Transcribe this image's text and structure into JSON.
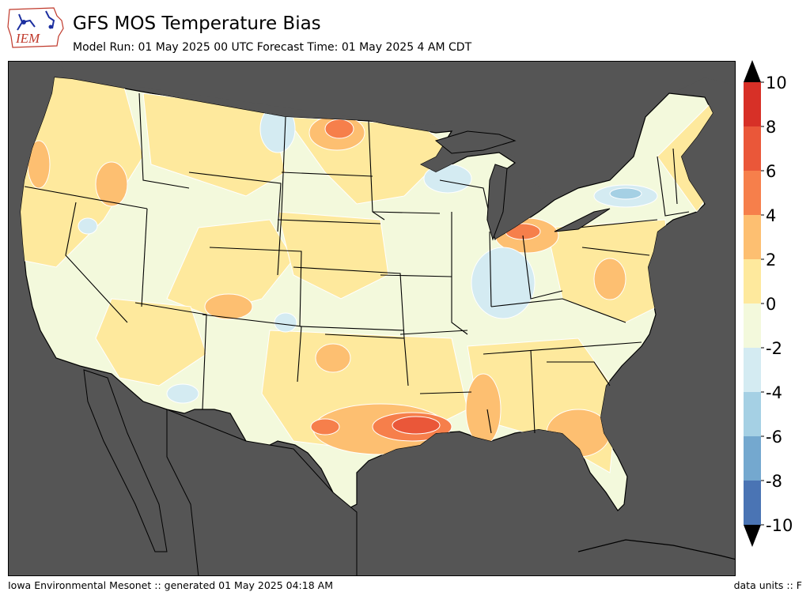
{
  "header": {
    "title": "GFS MOS Temperature Bias",
    "subtitle": "Model Run: 01 May 2025 00 UTC Forecast Time: 01 May 2025 4 AM CDT",
    "logo_text": "IEM"
  },
  "footer": {
    "credit": "Iowa Environmental Mesonet :: generated 01 May 2025 04:18 AM",
    "units": "data units :: F"
  },
  "colorbar": {
    "ticks": [
      "10",
      "8",
      "6",
      "4",
      "2",
      "0",
      "-2",
      "-4",
      "-6",
      "-8",
      "-10"
    ],
    "bins": [
      {
        "range": "8 to 10",
        "color": "#d73027"
      },
      {
        "range": "6 to 8",
        "color": "#ea5739"
      },
      {
        "range": "4 to 6",
        "color": "#f67f4b"
      },
      {
        "range": "2 to 4",
        "color": "#fdbf71"
      },
      {
        "range": "0 to 2",
        "color": "#fee99d"
      },
      {
        "range": "-2 to 0",
        "color": "#f3f9dc"
      },
      {
        "range": "-4 to -2",
        "color": "#d4ebf2"
      },
      {
        "range": "-6 to -4",
        "color": "#a5d0e4"
      },
      {
        "range": "-8 to -6",
        "color": "#74a8cf"
      },
      {
        "range": "-10 to -8",
        "color": "#4a74b4"
      }
    ],
    "over_color": "#000000",
    "under_color": "#000000"
  },
  "map_colors": {
    "ocean": "#555555",
    "land": "#f3f9dc",
    "warm_1": "#fee99d",
    "warm_2": "#fdbf71",
    "warm_3": "#f67f4b",
    "warm_4": "#ea5739",
    "cool_1": "#d4ebf2",
    "cool_2": "#a5d0e4"
  }
}
